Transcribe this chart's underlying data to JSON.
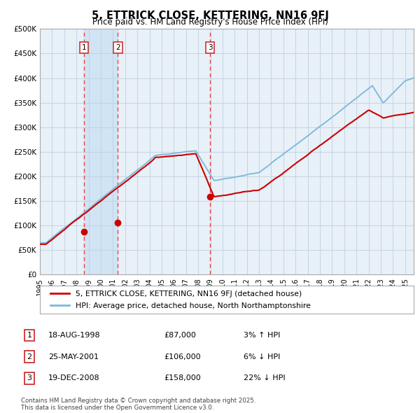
{
  "title": "5, ETTRICK CLOSE, KETTERING, NN16 9FJ",
  "subtitle": "Price paid vs. HM Land Registry's House Price Index (HPI)",
  "legend_line1": "5, ETTRICK CLOSE, KETTERING, NN16 9FJ (detached house)",
  "legend_line2": "HPI: Average price, detached house, North Northamptonshire",
  "footnote": "Contains HM Land Registry data © Crown copyright and database right 2025.\nThis data is licensed under the Open Government Licence v3.0.",
  "table": [
    {
      "num": "1",
      "date": "18-AUG-1998",
      "price": "£87,000",
      "pct": "3% ↑ HPI"
    },
    {
      "num": "2",
      "date": "25-MAY-2001",
      "price": "£106,000",
      "pct": "6% ↓ HPI"
    },
    {
      "num": "3",
      "date": "19-DEC-2008",
      "price": "£158,000",
      "pct": "22% ↓ HPI"
    }
  ],
  "sale_dates_num": [
    1998.63,
    2001.4,
    2008.97
  ],
  "sale_prices": [
    87000,
    106000,
    158000
  ],
  "sale_labels": [
    "1",
    "2",
    "3"
  ],
  "bg_span_start": 1998.63,
  "bg_span_end": 2001.4,
  "hpi_color": "#7ab8d9",
  "price_color": "#cc0000",
  "chart_bg": "#e8f0f8",
  "span_bg": "#d0e4f4",
  "grid_color": "#c0d0e0",
  "dashed_color": "#ee4444",
  "box_color": "#cc2222",
  "ylim": [
    0,
    500000
  ],
  "yticks": [
    0,
    50000,
    100000,
    150000,
    200000,
    250000,
    300000,
    350000,
    400000,
    450000,
    500000
  ],
  "xlim_start": 1995.0,
  "xlim_end": 2025.7,
  "xticks": [
    1995,
    1996,
    1997,
    1998,
    1999,
    2000,
    2001,
    2002,
    2003,
    2004,
    2005,
    2006,
    2007,
    2008,
    2009,
    2010,
    2011,
    2012,
    2013,
    2014,
    2015,
    2016,
    2017,
    2018,
    2019,
    2020,
    2021,
    2022,
    2023,
    2024,
    2025
  ]
}
